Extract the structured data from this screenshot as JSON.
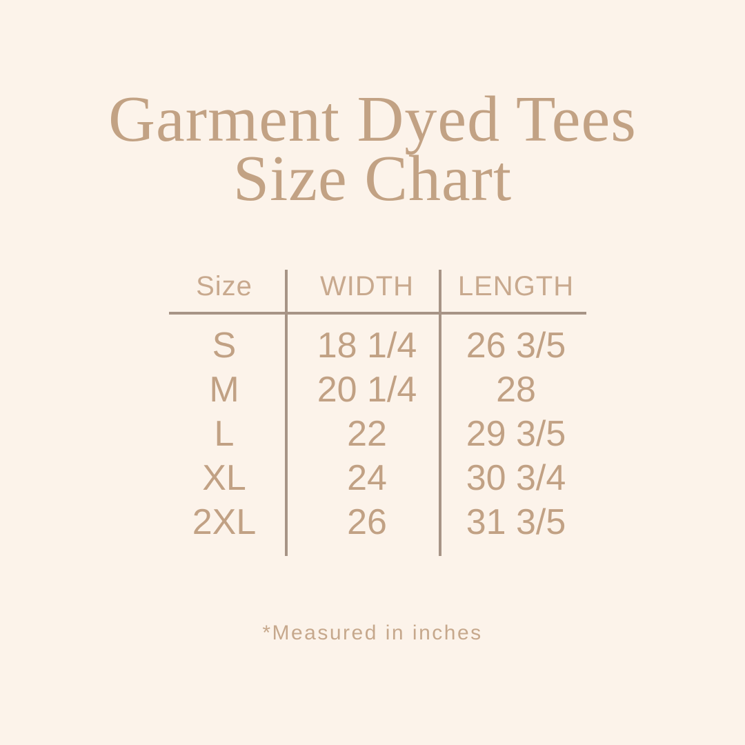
{
  "page": {
    "background_color": "#FCF3EA"
  },
  "title": {
    "line1": "Garment Dyed Tees",
    "line2": "Size Chart",
    "color": "#C2A284"
  },
  "table": {
    "line_color": "#A79486",
    "header_text_color": "#C8A98E",
    "body_text_color": "#C1A184",
    "header": {
      "size": "Size",
      "width": "WIDTH",
      "length": "LENGTH"
    },
    "rows": [
      {
        "size": "S",
        "width": "18 1/4",
        "length": "26 3/5"
      },
      {
        "size": "M",
        "width": "20 1/4",
        "length": "28"
      },
      {
        "size": "L",
        "width": "22",
        "length": "29 3/5"
      },
      {
        "size": "XL",
        "width": "24",
        "length": "30 3/4"
      },
      {
        "size": "2XL",
        "width": "26",
        "length": "31 3/5"
      }
    ]
  },
  "footnote": {
    "text": "*Measured in inches",
    "color": "#C6A88C"
  },
  "chart_data": {
    "type": "table",
    "title": "Garment Dyed Tees Size Chart",
    "columns": [
      "Size",
      "WIDTH",
      "LENGTH"
    ],
    "rows": [
      [
        "S",
        "18 1/4",
        "26 3/5"
      ],
      [
        "M",
        "20 1/4",
        "28"
      ],
      [
        "L",
        "22",
        "29 3/5"
      ],
      [
        "XL",
        "24",
        "30 3/4"
      ],
      [
        "2XL",
        "26",
        "31 3/5"
      ]
    ],
    "units": "inches",
    "note": "*Measured in inches"
  }
}
